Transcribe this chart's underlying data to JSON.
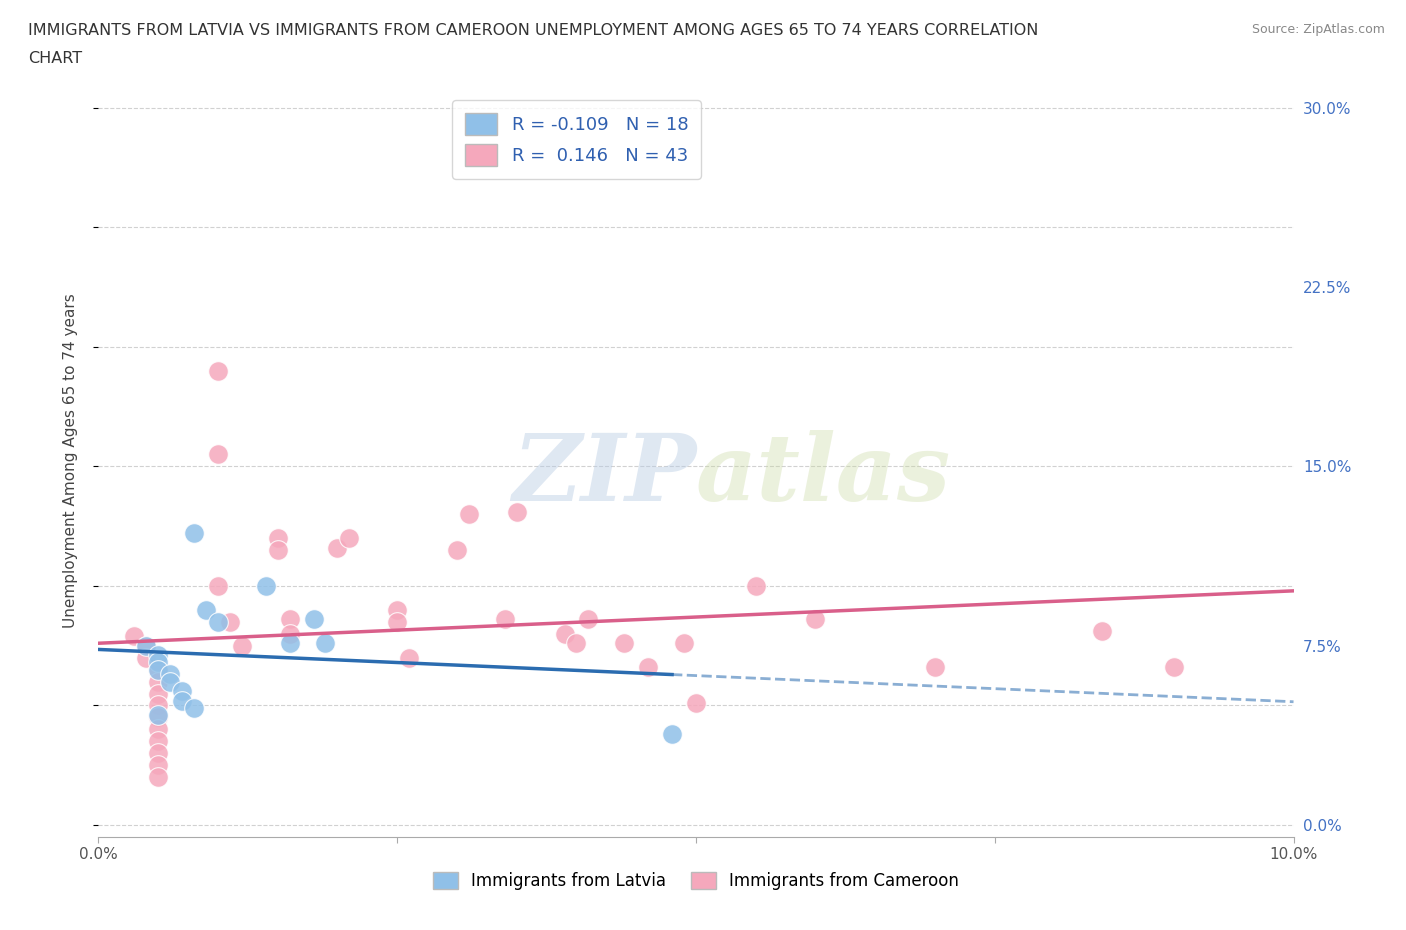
{
  "title_line1": "IMMIGRANTS FROM LATVIA VS IMMIGRANTS FROM CAMEROON UNEMPLOYMENT AMONG AGES 65 TO 74 YEARS CORRELATION",
  "title_line2": "CHART",
  "source": "Source: ZipAtlas.com",
  "ylabel": "Unemployment Among Ages 65 to 74 years",
  "xlim": [
    0.0,
    0.1
  ],
  "ylim": [
    -0.005,
    0.31
  ],
  "xticks": [
    0.0,
    0.025,
    0.05,
    0.075,
    0.1
  ],
  "yticks": [
    0.0,
    0.075,
    0.15,
    0.225,
    0.3
  ],
  "ytick_labels_right": [
    "0.0%",
    "7.5%",
    "15.0%",
    "22.5%",
    "30.0%"
  ],
  "watermark_zip": "ZIP",
  "watermark_atlas": "atlas",
  "latvia_R": -0.109,
  "latvia_N": 18,
  "cameroon_R": 0.146,
  "cameroon_N": 43,
  "latvia_color": "#90c0e8",
  "cameroon_color": "#f5a8bc",
  "latvia_line_color": "#2b6cb0",
  "cameroon_line_color": "#d95f8a",
  "latvia_scatter_x": [
    0.008,
    0.009,
    0.01,
    0.004,
    0.005,
    0.005,
    0.005,
    0.006,
    0.006,
    0.007,
    0.007,
    0.008,
    0.005,
    0.014,
    0.016,
    0.018,
    0.019,
    0.048
  ],
  "latvia_scatter_y": [
    0.122,
    0.09,
    0.085,
    0.075,
    0.071,
    0.068,
    0.065,
    0.063,
    0.06,
    0.056,
    0.052,
    0.049,
    0.046,
    0.1,
    0.076,
    0.086,
    0.076,
    0.038
  ],
  "cameroon_scatter_x": [
    0.003,
    0.004,
    0.004,
    0.005,
    0.005,
    0.005,
    0.005,
    0.005,
    0.005,
    0.005,
    0.005,
    0.005,
    0.005,
    0.01,
    0.01,
    0.01,
    0.011,
    0.012,
    0.015,
    0.015,
    0.016,
    0.016,
    0.02,
    0.021,
    0.025,
    0.025,
    0.026,
    0.03,
    0.031,
    0.034,
    0.035,
    0.039,
    0.04,
    0.041,
    0.044,
    0.046,
    0.049,
    0.05,
    0.055,
    0.06,
    0.07,
    0.084,
    0.09
  ],
  "cameroon_scatter_y": [
    0.079,
    0.075,
    0.07,
    0.065,
    0.06,
    0.055,
    0.05,
    0.045,
    0.04,
    0.035,
    0.03,
    0.025,
    0.02,
    0.19,
    0.155,
    0.1,
    0.085,
    0.075,
    0.12,
    0.115,
    0.086,
    0.08,
    0.116,
    0.12,
    0.09,
    0.085,
    0.07,
    0.115,
    0.13,
    0.086,
    0.131,
    0.08,
    0.076,
    0.086,
    0.076,
    0.066,
    0.076,
    0.051,
    0.1,
    0.086,
    0.066,
    0.081,
    0.066
  ],
  "background_color": "#ffffff",
  "grid_color": "#cccccc"
}
